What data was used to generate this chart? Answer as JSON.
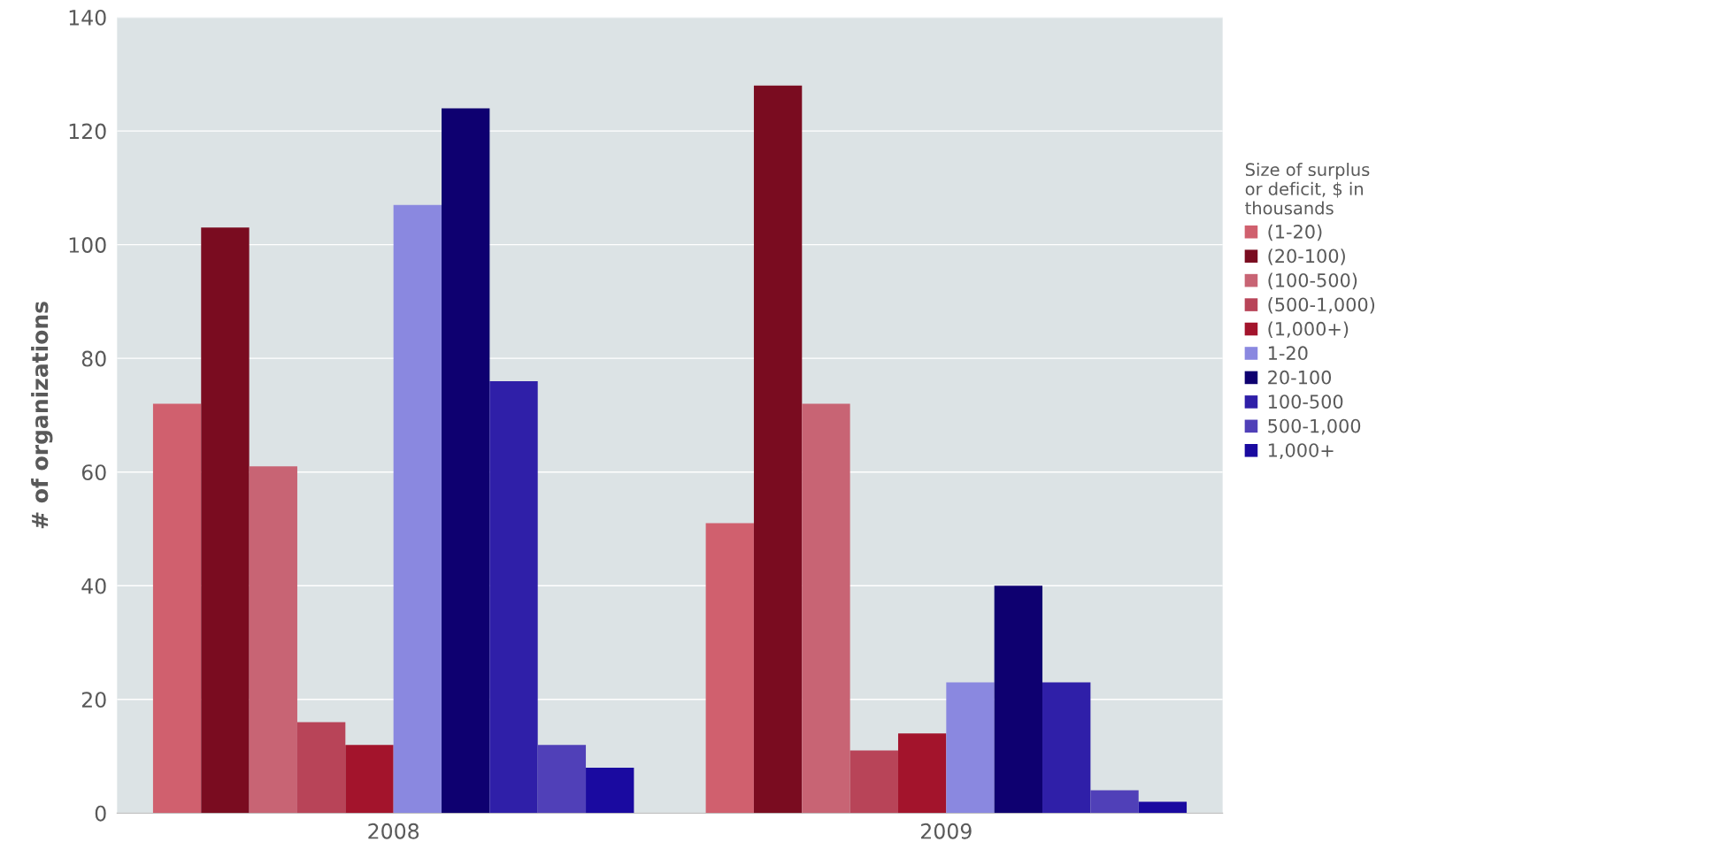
{
  "chart_data": {
    "type": "bar",
    "ylabel": "# of organizations",
    "legend_title": "Size of surplus\nor deficit, $ in\nthousands",
    "categories": [
      "2008",
      "2009"
    ],
    "series": [
      {
        "name": "(1-20)",
        "color": "#d0606e",
        "values": [
          72,
          51
        ]
      },
      {
        "name": "(20-100)",
        "color": "#7a0c20",
        "values": [
          103,
          128
        ]
      },
      {
        "name": "(100-500)",
        "color": "#c86474",
        "values": [
          61,
          72
        ]
      },
      {
        "name": "(500-1,000)",
        "color": "#b84458",
        "values": [
          16,
          11
        ]
      },
      {
        "name": "(1,000+)",
        "color": "#a3142c",
        "values": [
          12,
          14
        ]
      },
      {
        "name": "1-20",
        "color": "#8a88e0",
        "values": [
          107,
          23
        ]
      },
      {
        "name": "20-100",
        "color": "#0e0070",
        "values": [
          124,
          40
        ]
      },
      {
        "name": "100-500",
        "color": "#2f1fa8",
        "values": [
          76,
          23
        ]
      },
      {
        "name": "500-1,000",
        "color": "#5040b8",
        "values": [
          12,
          4
        ]
      },
      {
        "name": "1,000+",
        "color": "#1a0aa0",
        "values": [
          8,
          2
        ]
      }
    ],
    "ylim": [
      0,
      140
    ],
    "yticks": [
      0,
      20,
      40,
      60,
      80,
      100,
      120,
      140
    ],
    "grid": "y",
    "legend": "right"
  }
}
